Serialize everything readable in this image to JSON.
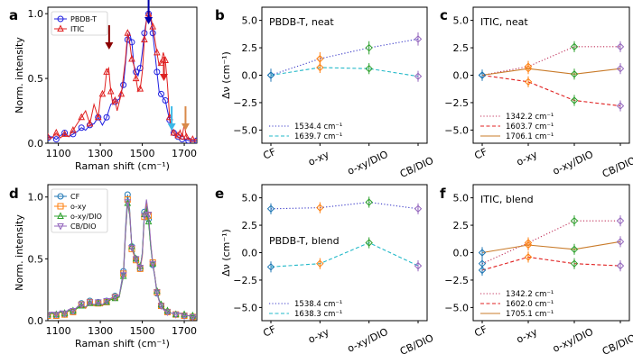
{
  "colors": {
    "blue": "#2020e0",
    "red": "#e02020",
    "navy": "#0000aa",
    "darkred": "#8b0000",
    "crimson": "#dd2222",
    "skyblue": "#3db8e8",
    "orange": "#d98a4a",
    "t_blue": "#1f77b4",
    "t_orange": "#ff7f0e",
    "t_green": "#2ca02c",
    "t_purple": "#9467bd",
    "dot_blue": "#3a3ac8",
    "cyan": "#20b8c8",
    "brown": "#c97b2a",
    "green": "#2ca02c",
    "violet": "#b080e0"
  },
  "chart_data": [
    {
      "panel": "a",
      "type": "line",
      "xlabel": "Raman shift",
      "ylabel": "Norm. intensity",
      "xlim": [
        1050,
        1760
      ],
      "ylim": [
        0,
        1.05
      ],
      "xticks": [
        "1100",
        "1300",
        "1500",
        "1700"
      ],
      "xtick_values": [
        1100,
        1300,
        1500,
        1700
      ],
      "yticks": [
        "0.0",
        "0.5",
        "1.0"
      ],
      "ytick_values": [
        0,
        0.5,
        1.0
      ],
      "series": [
        {
          "name": "PBDB-T",
          "color": "#2020e0",
          "x": [
            1050,
            1070,
            1090,
            1110,
            1130,
            1150,
            1170,
            1190,
            1210,
            1230,
            1250,
            1270,
            1290,
            1310,
            1330,
            1350,
            1370,
            1390,
            1410,
            1420,
            1430,
            1440,
            1450,
            1460,
            1470,
            1480,
            1490,
            1500,
            1510,
            1520,
            1530,
            1540,
            1550,
            1560,
            1570,
            1580,
            1590,
            1600,
            1610,
            1620,
            1630,
            1640,
            1650,
            1660,
            1670,
            1680,
            1690,
            1700,
            1720,
            1740,
            1760
          ],
          "y": [
            0.04,
            0.05,
            0.03,
            0.06,
            0.08,
            0.05,
            0.07,
            0.09,
            0.12,
            0.1,
            0.14,
            0.15,
            0.2,
            0.14,
            0.2,
            0.3,
            0.32,
            0.34,
            0.45,
            0.62,
            0.8,
            0.85,
            0.78,
            0.6,
            0.55,
            0.52,
            0.58,
            0.7,
            0.85,
            0.95,
            1.0,
            0.96,
            0.85,
            0.7,
            0.55,
            0.4,
            0.38,
            0.35,
            0.33,
            0.25,
            0.18,
            0.12,
            0.08,
            0.06,
            0.05,
            0.04,
            0.03,
            0.03,
            0.02,
            0.02,
            0.02
          ]
        },
        {
          "name": "ITIC",
          "color": "#e02020",
          "x": [
            1050,
            1070,
            1090,
            1110,
            1130,
            1150,
            1170,
            1190,
            1210,
            1230,
            1250,
            1270,
            1290,
            1300,
            1310,
            1320,
            1330,
            1340,
            1350,
            1360,
            1370,
            1380,
            1400,
            1420,
            1430,
            1440,
            1450,
            1460,
            1470,
            1480,
            1490,
            1500,
            1510,
            1520,
            1530,
            1540,
            1550,
            1560,
            1570,
            1580,
            1590,
            1600,
            1610,
            1620,
            1630,
            1640,
            1650,
            1660,
            1670,
            1680,
            1690,
            1700,
            1710,
            1720,
            1740,
            1760
          ],
          "y": [
            0.05,
            0.04,
            0.08,
            0.04,
            0.07,
            0.05,
            0.1,
            0.15,
            0.2,
            0.25,
            0.15,
            0.3,
            0.2,
            0.35,
            0.38,
            0.4,
            0.55,
            0.58,
            0.4,
            0.3,
            0.33,
            0.25,
            0.38,
            0.65,
            0.85,
            0.78,
            0.65,
            0.6,
            0.5,
            0.4,
            0.42,
            0.55,
            0.8,
            0.95,
            1.0,
            0.98,
            0.9,
            0.8,
            0.7,
            0.6,
            0.62,
            0.7,
            0.64,
            0.45,
            0.2,
            0.1,
            0.08,
            0.05,
            0.06,
            0.1,
            0.05,
            0.15,
            0.05,
            0.03,
            0.03,
            0.03
          ]
        }
      ],
      "arrows": [
        {
          "x": 1530,
          "color": "#0000aa"
        },
        {
          "x": 1342,
          "color": "#8b0000"
        },
        {
          "x": 1603,
          "color": "#dd2222"
        },
        {
          "x": 1640,
          "color": "#3db8e8"
        },
        {
          "x": 1706,
          "color": "#d98a4a"
        }
      ],
      "legend": [
        "PBDB-T",
        "ITIC"
      ]
    },
    {
      "panel": "d",
      "type": "line",
      "xlabel": "Raman shift",
      "ylabel": "Norm. intensity",
      "xlim": [
        1050,
        1760
      ],
      "ylim": [
        0,
        1.1
      ],
      "xticks": [
        "1100",
        "1300",
        "1500",
        "1700"
      ],
      "xtick_values": [
        1100,
        1300,
        1500,
        1700
      ],
      "yticks": [
        "0.0",
        "0.5",
        "1.0"
      ],
      "ytick_values": [
        0,
        0.5,
        1.0
      ],
      "x": [
        1050,
        1070,
        1090,
        1110,
        1130,
        1150,
        1170,
        1190,
        1210,
        1230,
        1250,
        1270,
        1290,
        1310,
        1330,
        1350,
        1370,
        1390,
        1410,
        1420,
        1430,
        1440,
        1450,
        1460,
        1470,
        1480,
        1490,
        1500,
        1510,
        1520,
        1530,
        1540,
        1550,
        1560,
        1570,
        1580,
        1590,
        1600,
        1620,
        1640,
        1660,
        1680,
        1700,
        1720,
        1740,
        1760
      ],
      "series": [
        {
          "name": "CF",
          "color": "#1f77b4",
          "y": [
            0.04,
            0.07,
            0.04,
            0.08,
            0.05,
            0.09,
            0.07,
            0.11,
            0.14,
            0.1,
            0.16,
            0.12,
            0.15,
            0.12,
            0.16,
            0.18,
            0.2,
            0.2,
            0.4,
            0.75,
            1.02,
            0.9,
            0.6,
            0.55,
            0.5,
            0.45,
            0.42,
            0.55,
            0.88,
            0.92,
            0.82,
            0.6,
            0.45,
            0.35,
            0.22,
            0.16,
            0.12,
            0.09,
            0.07,
            0.06,
            0.05,
            0.06,
            0.04,
            0.04,
            0.03,
            0.03
          ]
        },
        {
          "name": "o-xy",
          "color": "#ff7f0e",
          "y": [
            0.04,
            0.06,
            0.04,
            0.07,
            0.05,
            0.08,
            0.07,
            0.1,
            0.13,
            0.1,
            0.15,
            0.12,
            0.14,
            0.12,
            0.15,
            0.17,
            0.19,
            0.19,
            0.38,
            0.72,
            0.98,
            0.88,
            0.58,
            0.53,
            0.49,
            0.44,
            0.42,
            0.52,
            0.84,
            0.96,
            0.85,
            0.62,
            0.47,
            0.36,
            0.23,
            0.16,
            0.12,
            0.09,
            0.07,
            0.06,
            0.05,
            0.06,
            0.04,
            0.04,
            0.03,
            0.03
          ]
        },
        {
          "name": "o-xy/DIO",
          "color": "#2ca02c",
          "y": [
            0.05,
            0.06,
            0.05,
            0.07,
            0.06,
            0.08,
            0.08,
            0.1,
            0.12,
            0.11,
            0.14,
            0.13,
            0.14,
            0.13,
            0.15,
            0.17,
            0.18,
            0.19,
            0.36,
            0.7,
            0.95,
            0.85,
            0.6,
            0.55,
            0.5,
            0.46,
            0.44,
            0.54,
            0.86,
            0.9,
            0.8,
            0.6,
            0.46,
            0.36,
            0.24,
            0.17,
            0.13,
            0.1,
            0.08,
            0.06,
            0.05,
            0.06,
            0.05,
            0.04,
            0.04,
            0.03
          ]
        },
        {
          "name": "CB/DIO",
          "color": "#9467bd",
          "y": [
            0.05,
            0.07,
            0.05,
            0.08,
            0.06,
            0.09,
            0.08,
            0.11,
            0.13,
            0.11,
            0.15,
            0.13,
            0.15,
            0.13,
            0.16,
            0.18,
            0.19,
            0.2,
            0.37,
            0.71,
            0.96,
            0.87,
            0.59,
            0.54,
            0.5,
            0.45,
            0.43,
            0.53,
            0.85,
            0.98,
            0.86,
            0.63,
            0.46,
            0.36,
            0.23,
            0.16,
            0.12,
            0.09,
            0.07,
            0.06,
            0.05,
            0.06,
            0.04,
            0.04,
            0.03,
            0.03
          ]
        }
      ],
      "legend": [
        "CF",
        "o-xy",
        "o-xy/DIO",
        "CB/DIO"
      ]
    },
    {
      "panel": "b",
      "type": "line",
      "title": "PBDB-T, neat",
      "ylabel": "Δν (cm⁻¹)",
      "ylim": [
        -6.2,
        6.2
      ],
      "yticks": [
        "5.0",
        "2.5",
        "0.0",
        "−2.5",
        "−5.0"
      ],
      "ytick_values": [
        5,
        2.5,
        0,
        -2.5,
        -5
      ],
      "categories": [
        "CF",
        "o-xy",
        "o-xy/DIO",
        "CB/DIO"
      ],
      "series": [
        {
          "name": "1534.4 cm⁻¹",
          "color": "#3a3ac8",
          "dash": "dot",
          "values": [
            0,
            1.5,
            2.5,
            3.3
          ],
          "err": [
            0.6,
            0.6,
            0.6,
            0.6
          ],
          "markerColors": [
            "#1f77b4",
            "#ff7f0e",
            "#2ca02c",
            "#9467bd"
          ]
        },
        {
          "name": "1639.7 cm⁻¹",
          "color": "#20b8c8",
          "dash": "dash",
          "values": [
            0,
            0.7,
            0.6,
            -0.1
          ],
          "err": [
            0.5,
            0.5,
            0.5,
            0.5
          ],
          "markerColors": [
            "#1f77b4",
            "#ff7f0e",
            "#2ca02c",
            "#9467bd"
          ]
        }
      ]
    },
    {
      "panel": "c",
      "type": "line",
      "title": "ITIC, neat",
      "ylabel": "",
      "ylim": [
        -6.2,
        6.2
      ],
      "yticks": [
        "5.0",
        "2.5",
        "0.0",
        "−2.5",
        "−5.0"
      ],
      "ytick_values": [
        5,
        2.5,
        0,
        -2.5,
        -5
      ],
      "categories": [
        "CF",
        "o-xy",
        "o-xy/DIO",
        "CB/DIO"
      ],
      "series": [
        {
          "name": "1342.2 cm⁻¹",
          "color": "#c0305a",
          "dash": "dot",
          "values": [
            0,
            0.8,
            2.6,
            2.6
          ],
          "err": [
            0.5,
            0.5,
            0.5,
            0.5
          ],
          "markerColors": [
            "#1f77b4",
            "#ff7f0e",
            "#2ca02c",
            "#9467bd"
          ]
        },
        {
          "name": "1603.7 cm⁻¹",
          "color": "#e02020",
          "dash": "dash",
          "values": [
            0,
            -0.6,
            -2.3,
            -2.8
          ],
          "err": [
            0.5,
            0.5,
            0.5,
            0.5
          ],
          "markerColors": [
            "#1f77b4",
            "#ff7f0e",
            "#2ca02c",
            "#9467bd"
          ]
        },
        {
          "name": "1706.1 cm⁻¹",
          "color": "#c97b2a",
          "dash": "solid",
          "values": [
            0,
            0.6,
            0.1,
            0.6
          ],
          "err": [
            0.5,
            0.5,
            0.5,
            0.5
          ],
          "markerColors": [
            "#1f77b4",
            "#ff7f0e",
            "#2ca02c",
            "#9467bd"
          ]
        }
      ]
    },
    {
      "panel": "e",
      "type": "line",
      "title": "PBDB-T, blend",
      "ylabel": "Δν (cm⁻¹)",
      "ylim": [
        -6.2,
        6.2
      ],
      "yticks": [
        "5.0",
        "2.5",
        "0.0",
        "−2.5",
        "−5.0"
      ],
      "ytick_values": [
        5,
        2.5,
        0,
        -2.5,
        -5
      ],
      "categories": [
        "CF",
        "o-xy",
        "o-xy/DIO",
        "CB/DIO"
      ],
      "series": [
        {
          "name": "1538.4 cm⁻¹",
          "color": "#3a3ac8",
          "dash": "dot",
          "values": [
            4.0,
            4.1,
            4.6,
            4.0
          ],
          "err": [
            0.5,
            0.5,
            0.5,
            0.5
          ],
          "markerColors": [
            "#1f77b4",
            "#ff7f0e",
            "#2ca02c",
            "#9467bd"
          ]
        },
        {
          "name": "1638.3 cm⁻¹",
          "color": "#20b8c8",
          "dash": "dash",
          "values": [
            -1.3,
            -1.0,
            0.9,
            -1.2
          ],
          "err": [
            0.5,
            0.5,
            0.5,
            0.5
          ],
          "markerColors": [
            "#1f77b4",
            "#ff7f0e",
            "#2ca02c",
            "#9467bd"
          ]
        }
      ]
    },
    {
      "panel": "f",
      "type": "line",
      "title": "ITIC, blend",
      "ylabel": "",
      "ylim": [
        -6.2,
        6.2
      ],
      "yticks": [
        "5.0",
        "2.5",
        "0.0",
        "−2.5",
        "−5.0"
      ],
      "ytick_values": [
        5,
        2.5,
        0,
        -2.5,
        -5
      ],
      "categories": [
        "CF",
        "o-xy",
        "o-xy/DIO",
        "CB/DIO"
      ],
      "series": [
        {
          "name": "1342.2 cm⁻¹",
          "color": "#c0305a",
          "dash": "dot",
          "values": [
            -1.0,
            0.9,
            2.9,
            2.9
          ],
          "err": [
            0.5,
            0.5,
            0.5,
            0.5
          ],
          "markerColors": [
            "#1f77b4",
            "#ff7f0e",
            "#2ca02c",
            "#9467bd"
          ]
        },
        {
          "name": "1602.0 cm⁻¹",
          "color": "#e02020",
          "dash": "dash",
          "values": [
            -1.6,
            -0.4,
            -1.0,
            -1.2
          ],
          "err": [
            0.5,
            0.5,
            0.5,
            0.5
          ],
          "markerColors": [
            "#1f77b4",
            "#ff7f0e",
            "#2ca02c",
            "#9467bd"
          ]
        },
        {
          "name": "1705.1 cm⁻¹",
          "color": "#c97b2a",
          "dash": "solid",
          "values": [
            0,
            0.7,
            0.3,
            1.0
          ],
          "err": [
            0.5,
            0.5,
            0.5,
            0.5
          ],
          "markerColors": [
            "#1f77b4",
            "#ff7f0e",
            "#2ca02c",
            "#9467bd"
          ]
        }
      ]
    }
  ],
  "units": {
    "raman_unit": "(cm⁻¹)"
  }
}
